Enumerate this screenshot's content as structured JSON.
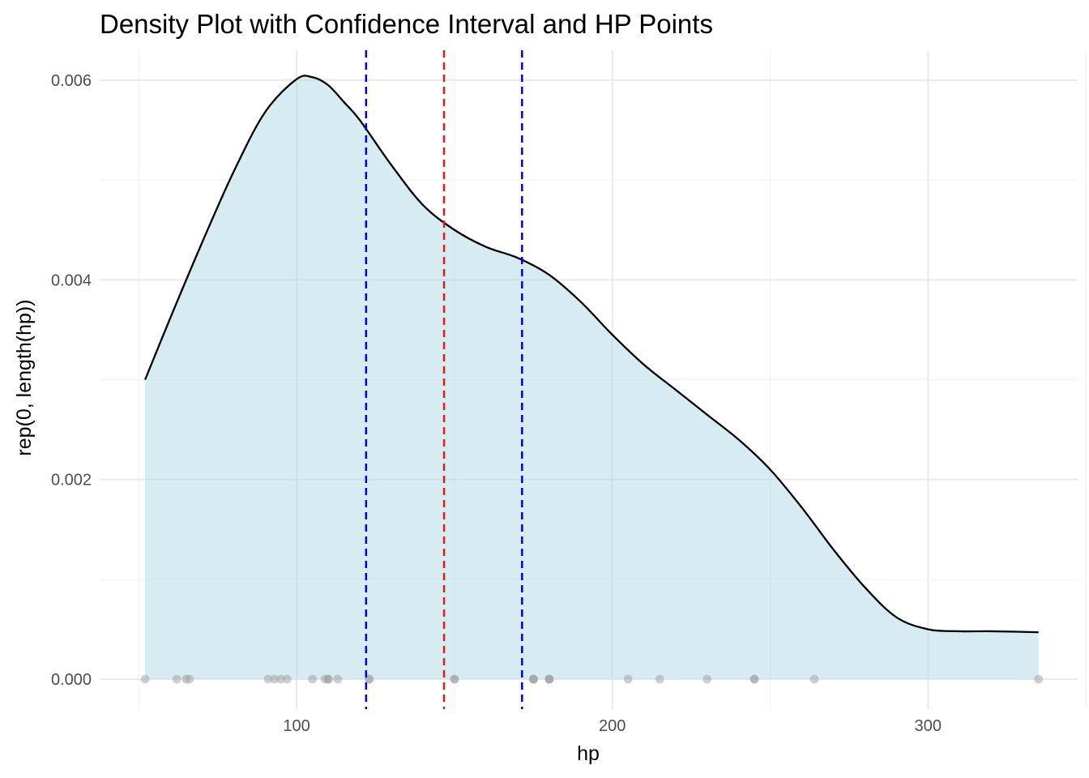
{
  "chart_data": {
    "type": "area",
    "title": "Density Plot with Confidence Interval and HP Points",
    "xlabel": "hp",
    "ylabel": "rep(0, length(hp))",
    "xlim": [
      37.6,
      347.4
    ],
    "ylim": [
      -0.0003,
      0.0063
    ],
    "x_ticks": [
      100,
      200,
      300
    ],
    "x_tick_labels": [
      "100",
      "200",
      "300"
    ],
    "y_ticks": [
      0,
      0.002,
      0.004,
      0.006
    ],
    "y_tick_labels": [
      "0.000",
      "0.002",
      "0.004",
      "0.006"
    ],
    "grid": true,
    "colors": {
      "fill": "#add8e6",
      "curve": "#000000",
      "mean_line": "#e41a1c",
      "ci_line": "#0000ee",
      "points": "#a0a0a0"
    },
    "density": {
      "x": [
        52,
        60,
        70,
        80,
        90,
        100,
        105,
        110,
        115,
        120,
        130,
        140,
        150,
        160,
        170,
        180,
        190,
        200,
        210,
        220,
        230,
        240,
        250,
        260,
        270,
        280,
        290,
        300,
        310,
        320,
        335
      ],
      "y": [
        0.003,
        0.00362,
        0.00437,
        0.00508,
        0.00568,
        0.00601,
        0.00603,
        0.00595,
        0.00578,
        0.0056,
        0.00515,
        0.00475,
        0.0045,
        0.00433,
        0.00422,
        0.00405,
        0.00378,
        0.00345,
        0.00315,
        0.0029,
        0.00265,
        0.0024,
        0.0021,
        0.00172,
        0.0013,
        0.00092,
        0.00062,
        0.0005,
        0.00048,
        0.00048,
        0.00047
      ]
    },
    "mean_line_x": 146.7,
    "ci_lines_x": [
      122.0,
      171.4
    ],
    "points_x": [
      52,
      62,
      65,
      66,
      91,
      93,
      95,
      97,
      105,
      109,
      110,
      110,
      113,
      123,
      123,
      150,
      150,
      175,
      175,
      175,
      180,
      180,
      180,
      205,
      215,
      230,
      245,
      245,
      264,
      335
    ],
    "points_y": 0
  }
}
